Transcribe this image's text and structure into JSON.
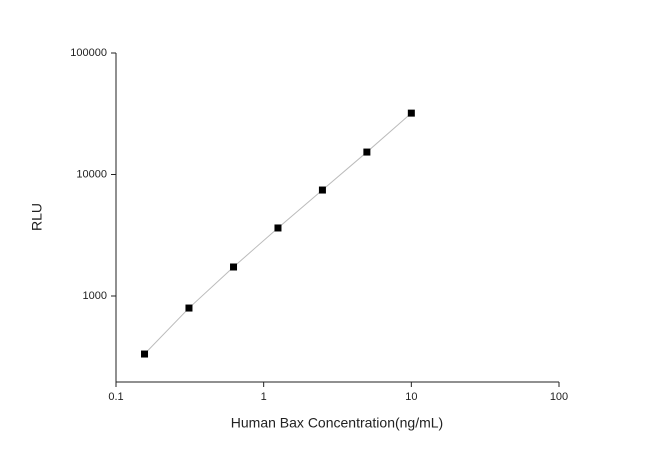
{
  "chart_data": {
    "type": "scatter",
    "x_label": "Human Bax Concentration(ng/mL)",
    "y_label": "RLU",
    "x": [
      0.156,
      0.312,
      0.625,
      1.25,
      2.5,
      5,
      10
    ],
    "series": [
      {
        "color": "#000000",
        "values": [
          333,
          796,
          1733,
          3630,
          7450,
          15300,
          32000
        ]
      }
    ],
    "xlim": [
      0.1,
      100
    ],
    "ylim": [
      196,
      100000
    ],
    "xticks": [
      0.1,
      1,
      10,
      100
    ],
    "yticks": [
      1000,
      10000,
      100000
    ],
    "xscale": "log",
    "yscale": "log",
    "grid": false,
    "line_color": "#bbbbbb"
  }
}
